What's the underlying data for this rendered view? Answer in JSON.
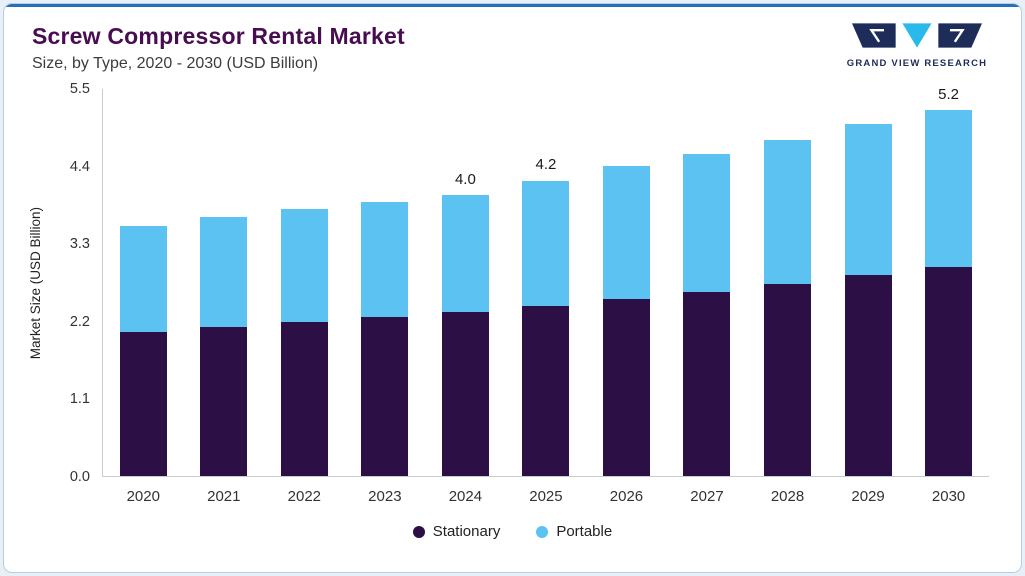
{
  "header": {
    "title": "Screw Compressor Rental Market",
    "subtitle": "Size, by Type, 2020 - 2030 (USD Billion)"
  },
  "logo": {
    "text": "GRAND VIEW RESEARCH"
  },
  "chart_data": {
    "type": "bar",
    "stacked": true,
    "title": "Screw Compressor Rental Market Size, by Type, 2020 - 2030 (USD Billion)",
    "categories": [
      "2020",
      "2021",
      "2022",
      "2023",
      "2024",
      "2025",
      "2026",
      "2027",
      "2028",
      "2029",
      "2030"
    ],
    "series": [
      {
        "name": "Stationary",
        "color": "#2b0f45",
        "values": [
          2.05,
          2.12,
          2.19,
          2.26,
          2.33,
          2.41,
          2.51,
          2.62,
          2.73,
          2.85,
          2.97
        ]
      },
      {
        "name": "Portable",
        "color": "#5cc2f1",
        "values": [
          1.5,
          1.56,
          1.6,
          1.64,
          1.67,
          1.79,
          1.89,
          1.96,
          2.05,
          2.15,
          2.23
        ]
      }
    ],
    "bar_labels": [
      "",
      "",
      "",
      "",
      "4.0",
      "4.2",
      "",
      "",
      "",
      "",
      "5.2"
    ],
    "xlabel": "",
    "ylabel": "Market Size (USD Billion)",
    "ylim": [
      0,
      5.5
    ],
    "yticks": [
      "0.0",
      "1.1",
      "2.2",
      "3.3",
      "4.4",
      "5.5"
    ],
    "grid": false,
    "legend_position": "bottom"
  },
  "colors": {
    "accent_bar": "#2471b9",
    "title": "#470d50",
    "axis": "#c5ccd3",
    "text": "#333333",
    "logo_navy": "#1e2c5a",
    "logo_cyan": "#29b9ea"
  }
}
